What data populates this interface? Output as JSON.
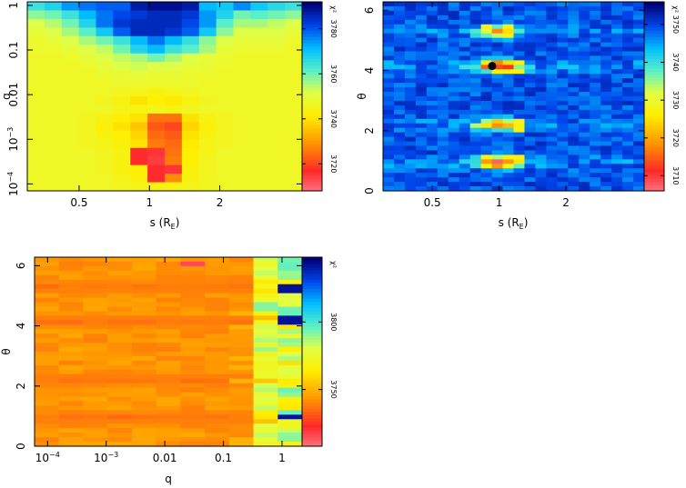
{
  "chart_data": [
    {
      "type": "heatmap",
      "id": "panel-s-q",
      "xlabel": "s (R_E)",
      "xlabel_main": "s (R",
      "xlabel_sub": "E",
      "xlabel_close": ")",
      "ylabel": "q",
      "x_scale": "log",
      "y_scale": "log",
      "xlim": [
        0.3,
        4.5
      ],
      "ylim": [
        7e-05,
        1.2
      ],
      "x_ticks": [
        {
          "v": 0.5,
          "label": "0.5"
        },
        {
          "v": 1,
          "label": "1"
        },
        {
          "v": 2,
          "label": "2"
        }
      ],
      "y_ticks": [
        {
          "v": 1,
          "label": "1"
        },
        {
          "v": 0.1,
          "label": "0.1"
        },
        {
          "v": 0.01,
          "label": "0.01"
        },
        {
          "v": 0.001,
          "label": "10",
          "sup": "−3"
        },
        {
          "v": 0.0001,
          "label": "10",
          "sup": "−4"
        }
      ],
      "colorbar": {
        "title": "χ²",
        "labels": [
          "3720",
          "3740",
          "3760",
          "3780"
        ],
        "range": [
          3708,
          3792
        ]
      },
      "rows": [
        "1",
        "0.63",
        "0.40",
        "0.25",
        "0.16",
        "0.10",
        "0.063",
        "0.040",
        "0.025",
        "0.016",
        "0.010",
        "0.0063",
        "0.0040",
        "0.0025",
        "0.0016",
        "0.0010",
        "0.00063",
        "0.00040",
        "0.00025",
        "0.00016",
        "0.00010",
        "0.000063"
      ],
      "cols": [
        "0.32",
        "0.38",
        "0.45",
        "0.53",
        "0.63",
        "0.75",
        "0.89",
        "1.0",
        "1.2",
        "1.4",
        "1.7",
        "2.0",
        "2.4",
        "2.8",
        "3.4",
        "4.0"
      ],
      "grid": [
        [
          3765,
          3768,
          3775,
          3778,
          3780,
          3780,
          3788,
          3790,
          3790,
          3788,
          3772,
          3770,
          3776,
          3770,
          3767,
          3765
        ],
        [
          3758,
          3760,
          3765,
          3772,
          3778,
          3782,
          3784,
          3786,
          3786,
          3784,
          3775,
          3768,
          3760,
          3762,
          3760,
          3758
        ],
        [
          3752,
          3755,
          3760,
          3768,
          3778,
          3784,
          3786,
          3786,
          3786,
          3782,
          3775,
          3762,
          3756,
          3756,
          3754,
          3752
        ],
        [
          3750,
          3752,
          3756,
          3762,
          3770,
          3780,
          3786,
          3786,
          3784,
          3780,
          3770,
          3758,
          3752,
          3752,
          3752,
          3750
        ],
        [
          3748,
          3750,
          3752,
          3756,
          3760,
          3765,
          3772,
          3778,
          3772,
          3766,
          3758,
          3752,
          3750,
          3750,
          3750,
          3748
        ],
        [
          3748,
          3748,
          3750,
          3752,
          3754,
          3760,
          3768,
          3772,
          3765,
          3762,
          3756,
          3750,
          3748,
          3748,
          3748,
          3747
        ],
        [
          3747,
          3747,
          3748,
          3750,
          3752,
          3754,
          3756,
          3760,
          3756,
          3752,
          3750,
          3748,
          3747,
          3747,
          3747,
          3747
        ],
        [
          3747,
          3747,
          3747,
          3748,
          3750,
          3752,
          3753,
          3752,
          3752,
          3750,
          3749,
          3748,
          3747,
          3747,
          3747,
          3747
        ],
        [
          3747,
          3747,
          3747,
          3747,
          3748,
          3749,
          3750,
          3749,
          3749,
          3748,
          3748,
          3747,
          3747,
          3747,
          3747,
          3747
        ],
        [
          3747,
          3747,
          3747,
          3747,
          3747,
          3748,
          3748,
          3748,
          3748,
          3748,
          3747,
          3747,
          3747,
          3747,
          3747,
          3747
        ],
        [
          3747,
          3747,
          3747,
          3747,
          3747,
          3746,
          3745,
          3744,
          3745,
          3746,
          3747,
          3747,
          3747,
          3747,
          3747,
          3747
        ],
        [
          3747,
          3747,
          3747,
          3747,
          3746,
          3744,
          3740,
          3742,
          3741,
          3744,
          3746,
          3747,
          3747,
          3747,
          3747,
          3747
        ],
        [
          3747,
          3747,
          3747,
          3747,
          3747,
          3745,
          3744,
          3745,
          3744,
          3746,
          3747,
          3747,
          3747,
          3747,
          3747,
          3747
        ],
        [
          3747,
          3747,
          3747,
          3746,
          3744,
          3742,
          3740,
          3725,
          3725,
          3740,
          3744,
          3746,
          3747,
          3747,
          3747,
          3747
        ],
        [
          3747,
          3747,
          3747,
          3746,
          3743,
          3740,
          3736,
          3722,
          3720,
          3738,
          3743,
          3746,
          3747,
          3747,
          3747,
          3747
        ],
        [
          3747,
          3747,
          3747,
          3746,
          3744,
          3742,
          3738,
          3724,
          3722,
          3740,
          3744,
          3746,
          3747,
          3747,
          3747,
          3747
        ],
        [
          3747,
          3747,
          3747,
          3746,
          3745,
          3743,
          3740,
          3726,
          3724,
          3741,
          3745,
          3746,
          3747,
          3747,
          3747,
          3747
        ],
        [
          3747,
          3747,
          3747,
          3747,
          3746,
          3744,
          3716,
          3715,
          3725,
          3742,
          3745,
          3747,
          3747,
          3747,
          3747,
          3747
        ],
        [
          3747,
          3747,
          3747,
          3747,
          3746,
          3744,
          3716,
          3714,
          3726,
          3742,
          3746,
          3747,
          3747,
          3747,
          3747,
          3747
        ],
        [
          3747,
          3747,
          3747,
          3747,
          3746,
          3744,
          3742,
          3716,
          3715,
          3743,
          3746,
          3747,
          3747,
          3747,
          3747,
          3747
        ],
        [
          3747,
          3747,
          3747,
          3747,
          3747,
          3745,
          3743,
          3716,
          3728,
          3744,
          3746,
          3747,
          3747,
          3747,
          3747,
          3747
        ],
        [
          3747,
          3747,
          3747,
          3747,
          3747,
          3746,
          3745,
          3744,
          3744,
          3745,
          3746,
          3747,
          3747,
          3747,
          3747,
          3747
        ]
      ]
    },
    {
      "type": "heatmap",
      "id": "panel-s-theta",
      "xlabel": "s (R_E)",
      "xlabel_main": "s (R",
      "xlabel_sub": "E",
      "xlabel_close": ")",
      "ylabel": "θ",
      "x_scale": "log",
      "y_scale": "linear",
      "xlim": [
        0.3,
        4.5
      ],
      "ylim": [
        0,
        6.283
      ],
      "x_ticks": [
        {
          "v": 0.5,
          "label": "0.5"
        },
        {
          "v": 1,
          "label": "1"
        },
        {
          "v": 2,
          "label": "2"
        }
      ],
      "y_ticks": [
        {
          "v": 0,
          "label": "0"
        },
        {
          "v": 2,
          "label": "2"
        },
        {
          "v": 4,
          "label": "4"
        },
        {
          "v": 6,
          "label": "6"
        }
      ],
      "colorbar": {
        "title": "χ²",
        "labels": [
          "3710",
          "3720",
          "3730",
          "3740",
          "3750"
        ],
        "range": [
          3706,
          3756
        ]
      },
      "marker": {
        "s": 0.93,
        "theta": 4.15
      }
    },
    {
      "type": "heatmap",
      "id": "panel-q-theta",
      "xlabel": "q",
      "ylabel": "θ",
      "x_scale": "log",
      "y_scale": "linear",
      "xlim": [
        6e-05,
        2.2
      ],
      "ylim": [
        0,
        6.283
      ],
      "x_ticks": [
        {
          "v": 0.0001,
          "label": "10",
          "sup": "−4"
        },
        {
          "v": 0.001,
          "label": "10",
          "sup": "−3"
        },
        {
          "v": 0.01,
          "label": "0.01"
        },
        {
          "v": 0.1,
          "label": "0.1"
        },
        {
          "v": 1,
          "label": "1"
        }
      ],
      "y_ticks": [
        {
          "v": 0,
          "label": "0"
        },
        {
          "v": 2,
          "label": "2"
        },
        {
          "v": 4,
          "label": "4"
        },
        {
          "v": 6,
          "label": "6"
        }
      ],
      "colorbar": {
        "title": "χ²",
        "labels": [
          "3750",
          "3800"
        ],
        "range": [
          3708,
          3848
        ]
      }
    }
  ]
}
